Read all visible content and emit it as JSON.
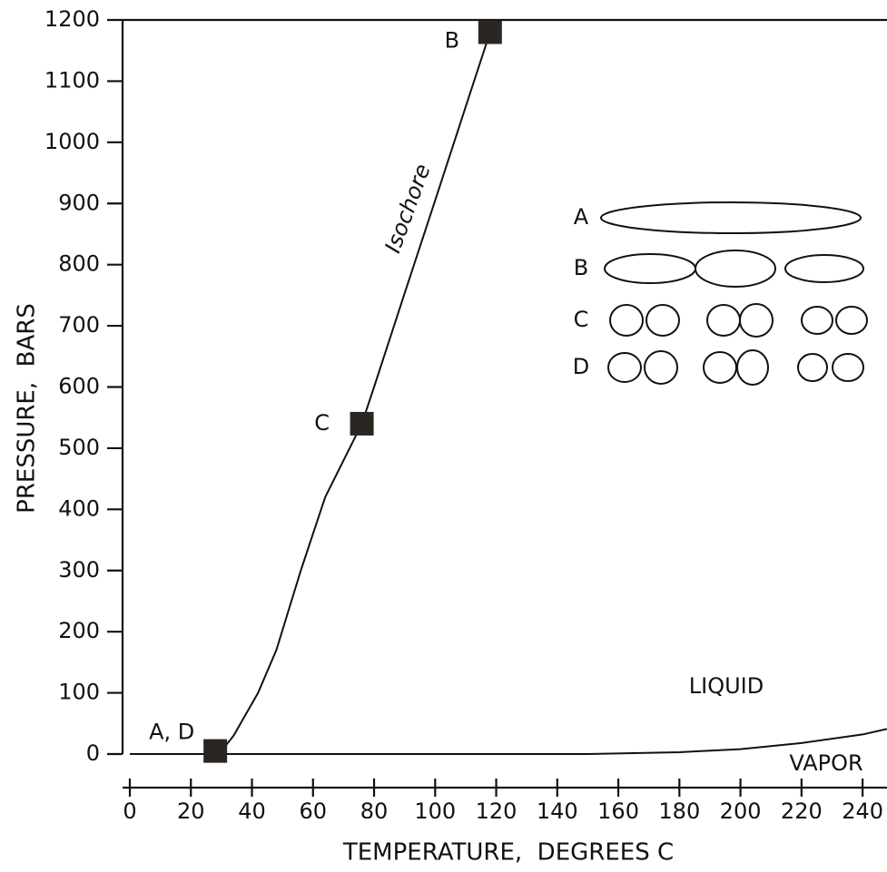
{
  "chart_data": {
    "type": "line",
    "xlabel": "TEMPERATURE,  DEGREES C",
    "ylabel": "PRESSURE,  BARS",
    "xlim": [
      0,
      248
    ],
    "ylim": [
      0,
      1200
    ],
    "xticks": [
      0,
      20,
      40,
      60,
      80,
      100,
      120,
      140,
      160,
      180,
      200,
      220,
      240
    ],
    "yticks": [
      0,
      100,
      200,
      300,
      400,
      500,
      600,
      700,
      800,
      900,
      1000,
      1100,
      1200
    ],
    "series": [
      {
        "name": "Isochore",
        "color": "#111111",
        "x": [
          30,
          34,
          38,
          42,
          48,
          56,
          64,
          72,
          76,
          80,
          90,
          100,
          110,
          118
        ],
        "values": [
          5,
          30,
          65,
          100,
          170,
          300,
          420,
          500,
          540,
          600,
          753,
          905,
          1058,
          1180
        ]
      },
      {
        "color": "#111111",
        "x": [
          0,
          28,
          150,
          180,
          200,
          220,
          240,
          248
        ],
        "values": [
          0,
          0,
          0,
          3,
          8,
          18,
          32,
          41
        ]
      }
    ],
    "points": [
      {
        "label": "A, D",
        "x": 28,
        "y": 5
      },
      {
        "label": "C",
        "x": 76,
        "y": 540
      },
      {
        "label": "B",
        "x": 118,
        "y": 1180
      }
    ],
    "regions": [
      "LIQUID",
      "VAPOR"
    ],
    "inset_labels": [
      "A",
      "B",
      "C",
      "D"
    ]
  }
}
